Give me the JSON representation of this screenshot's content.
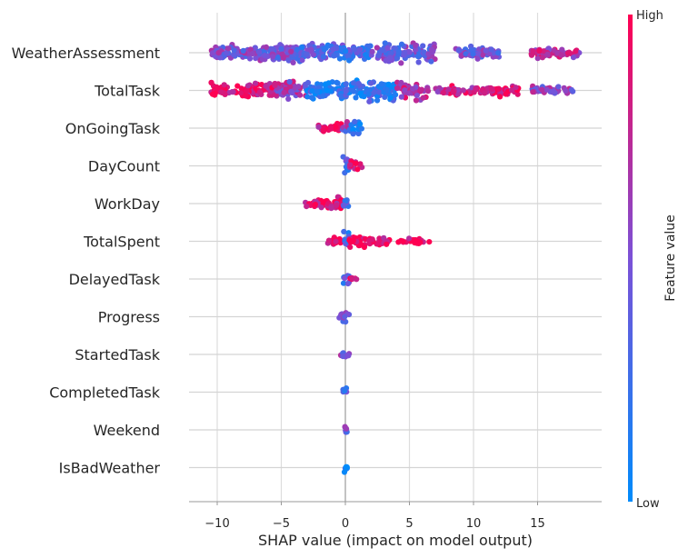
{
  "chart_data": {
    "type": "scatter",
    "subtype": "beeswarm",
    "xlabel": "SHAP value (impact on model output)",
    "xticks": [
      -10,
      -5,
      0,
      5,
      10,
      15
    ],
    "xlim": [
      -12.2,
      20
    ],
    "grid": true,
    "colorbar": {
      "title": "Feature value",
      "high_label": "High",
      "low_label": "Low",
      "colors": [
        "#008bfb",
        "#7b51d7",
        "#ff0052"
      ]
    },
    "features": [
      {
        "name": "WeatherAssessment",
        "segments": [
          [
            -10.5,
            -7.5,
            0.5,
            0.7
          ],
          [
            -7.5,
            -3.5,
            0.45,
            1.0
          ],
          [
            -3.5,
            0,
            0.3,
            0.85
          ],
          [
            0,
            2.0,
            0.3,
            0.7
          ],
          [
            2.0,
            7.0,
            0.45,
            0.9
          ],
          [
            8.5,
            12.0,
            0.45,
            0.5
          ],
          [
            14.5,
            18.5,
            0.75,
            0.45
          ]
        ]
      },
      {
        "name": "TotalTask",
        "segments": [
          [
            -10.5,
            -5.5,
            0.9,
            0.6
          ],
          [
            -5.5,
            -3.0,
            0.6,
            0.85
          ],
          [
            -3.0,
            0,
            0.15,
            0.9
          ],
          [
            0,
            4.0,
            0.2,
            1.0
          ],
          [
            4.0,
            6.5,
            0.7,
            0.8
          ],
          [
            7.0,
            10.0,
            0.8,
            0.4
          ],
          [
            10.0,
            13.5,
            0.95,
            0.45
          ],
          [
            14.5,
            17.8,
            0.55,
            0.25
          ]
        ]
      },
      {
        "name": "OnGoingTask",
        "segments": [
          [
            -2.2,
            -0.3,
            0.9,
            0.4
          ],
          [
            -0.3,
            0.3,
            0.5,
            0.9
          ],
          [
            0.3,
            1.3,
            0.05,
            0.6
          ]
        ]
      },
      {
        "name": "DayCount",
        "segments": [
          [
            -0.3,
            0.3,
            0.35,
            0.7
          ],
          [
            0.3,
            1.3,
            0.9,
            0.35
          ]
        ]
      },
      {
        "name": "WorkDay",
        "segments": [
          [
            -3.2,
            -1.5,
            0.92,
            0.3
          ],
          [
            -1.5,
            -0.2,
            0.9,
            0.5
          ],
          [
            -0.2,
            0.3,
            0.25,
            0.5
          ]
        ]
      },
      {
        "name": "TotalSpent",
        "segments": [
          [
            -1.5,
            -0.2,
            0.95,
            0.3
          ],
          [
            -0.2,
            0.3,
            0.3,
            0.7
          ],
          [
            0.3,
            3.5,
            0.95,
            0.45
          ],
          [
            4.0,
            6.6,
            0.95,
            0.15
          ]
        ]
      },
      {
        "name": "DelayedTask",
        "segments": [
          [
            -0.2,
            0.3,
            0.35,
            0.5
          ],
          [
            0.3,
            1.0,
            0.9,
            0.25
          ]
        ]
      },
      {
        "name": "Progress",
        "segments": [
          [
            -0.6,
            0.3,
            0.5,
            0.35
          ]
        ]
      },
      {
        "name": "StartedTask",
        "segments": [
          [
            -0.5,
            0.3,
            0.5,
            0.3
          ]
        ]
      },
      {
        "name": "CompletedTask",
        "segments": [
          [
            -0.3,
            0.2,
            0.4,
            0.3
          ]
        ]
      },
      {
        "name": "Weekend",
        "segments": [
          [
            -0.15,
            0.15,
            0.4,
            0.3
          ]
        ]
      },
      {
        "name": "IsBadWeather",
        "segments": [
          [
            -0.15,
            0.15,
            0.0,
            0.35
          ]
        ]
      }
    ]
  }
}
